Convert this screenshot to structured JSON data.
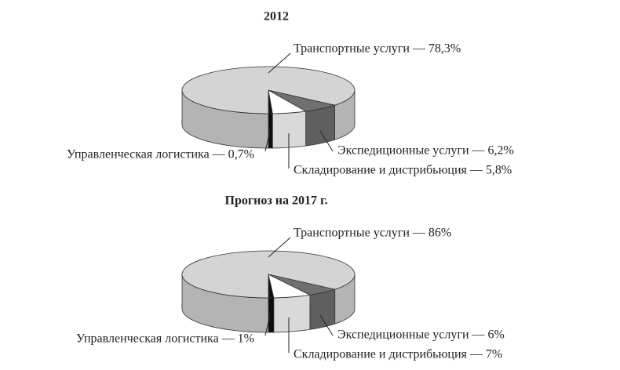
{
  "chart_data": [
    {
      "type": "pie",
      "title": "2012",
      "values": [
        0.7,
        5.8,
        6.2,
        78.3
      ],
      "value_labels": [
        "Управленческая логистика — 0,7%",
        "Складирование и дистрибьюция — 5,8%",
        "Экспедиционные услуги — 6,2%",
        "Транспортные услуги — 78,3%"
      ],
      "colors": [
        "#111111",
        "#ffffff",
        "#707070",
        "#d4d4d4"
      ]
    },
    {
      "type": "pie",
      "title": "Прогноз на 2017 г.",
      "values": [
        1,
        7,
        6,
        86
      ],
      "value_labels": [
        "Управленческая логистика — 1%",
        "Складирование и дистрибьюция — 7%",
        "Экспедиционные услуги — 6%",
        "Транспортные услуги — 86%"
      ],
      "colors": [
        "#111111",
        "#ffffff",
        "#707070",
        "#d4d4d4"
      ]
    }
  ]
}
